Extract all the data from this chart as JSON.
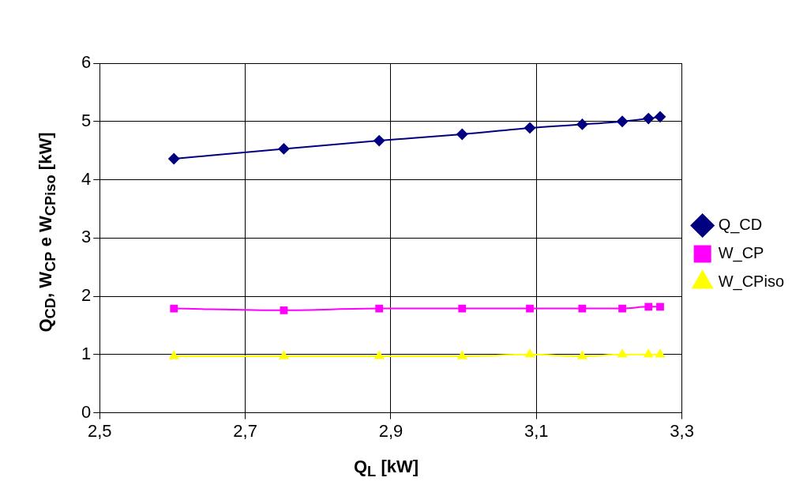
{
  "chart_data": {
    "type": "line",
    "xlabel": "Q$_{L}$ [kW]",
    "ylabel": "Q$_{CD}$, W$_{CP}$ e W$_{CPiso}$  [kW]",
    "x": [
      2.602,
      2.753,
      2.884,
      2.998,
      3.091,
      3.163,
      3.218,
      3.254,
      3.27
    ],
    "series": [
      {
        "name": "Q_CD",
        "color": "#000080",
        "marker": "diamond",
        "values": [
          4.36,
          4.53,
          4.67,
          4.78,
          4.89,
          4.95,
          5.0,
          5.05,
          5.08
        ]
      },
      {
        "name": "W_CP",
        "color": "#ff00ff",
        "marker": "square",
        "values": [
          1.79,
          1.76,
          1.79,
          1.79,
          1.79,
          1.79,
          1.79,
          1.82,
          1.82
        ]
      },
      {
        "name": "W_CPiso",
        "color": "#ffff00",
        "marker": "triangle",
        "values": [
          0.97,
          0.97,
          0.97,
          0.97,
          1.0,
          0.97,
          1.0,
          1.0,
          1.0
        ]
      }
    ],
    "xlim": [
      2.5,
      3.3
    ],
    "xticks": [
      {
        "value": 2.5,
        "label": "2,5"
      },
      {
        "value": 2.7,
        "label": "2,7"
      },
      {
        "value": 2.9,
        "label": "2,9"
      },
      {
        "value": 3.1,
        "label": "3,1"
      },
      {
        "value": 3.3,
        "label": "3,3"
      }
    ],
    "ylim": [
      0,
      6
    ],
    "yticks": [
      0,
      1,
      2,
      3,
      4,
      5,
      6
    ],
    "grid": true,
    "legend": "right",
    "line_style": "solid"
  }
}
